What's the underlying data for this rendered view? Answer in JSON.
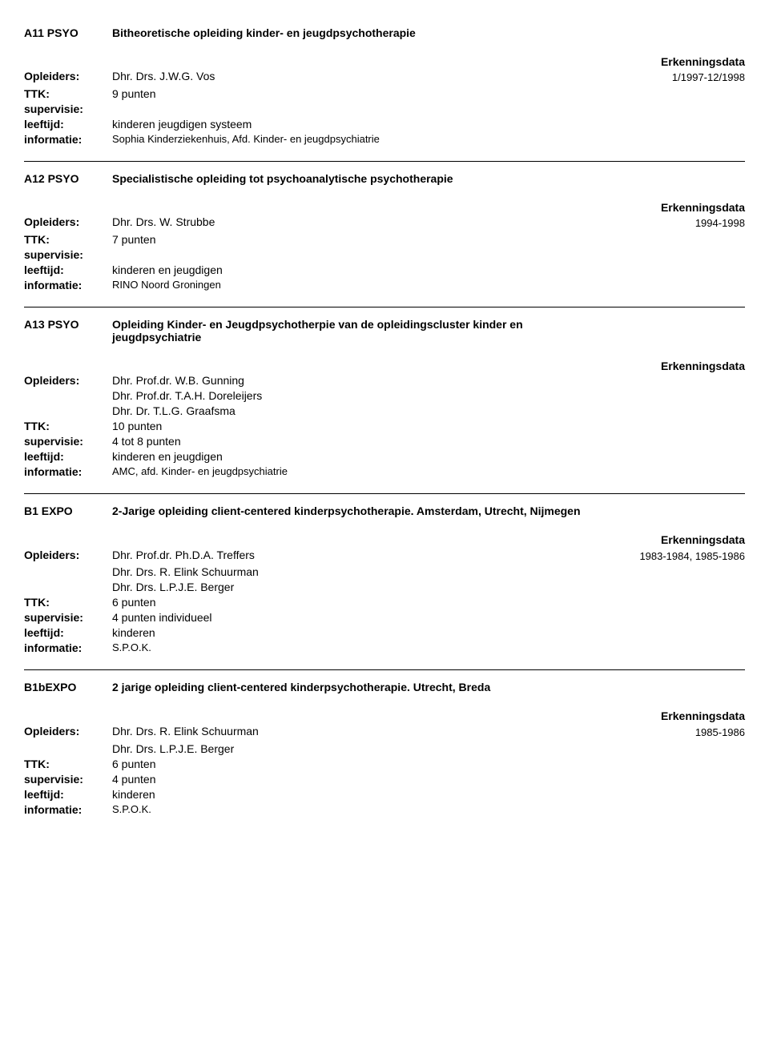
{
  "labels": {
    "opleiders": "Opleiders:",
    "ttk": "TTK:",
    "supervisie": "supervisie:",
    "leeftijd": "leeftijd:",
    "informatie": "informatie:"
  },
  "erk_header": "Erkenningsdata",
  "entries": [
    {
      "code": "A11 PSYO",
      "title": "Bitheoretische opleiding kinder- en jeugdpsychotherapie",
      "trainers": [
        "Dhr.  Drs.  J.W.G.   Vos"
      ],
      "erk_date": "1/1997-12/1998",
      "ttk": "9 punten",
      "supervisie": "",
      "leeftijd": "kinderen jeugdigen systeem",
      "informatie": "Sophia Kinderziekenhuis, Afd. Kinder- en jeugdpsychiatrie"
    },
    {
      "code": "A12 PSYO",
      "title": "Specialistische opleiding tot psychoanalytische psychotherapie",
      "trainers": [
        "Dhr.  Drs.  W.   Strubbe"
      ],
      "erk_date": "1994-1998",
      "ttk": "7 punten",
      "supervisie": "",
      "leeftijd": "kinderen en jeugdigen",
      "informatie": "RINO Noord Groningen"
    },
    {
      "code": "A13 PSYO",
      "title": "Opleiding Kinder- en Jeugdpsychotherpie van de opleidingscluster kinder en jeugdpsychiatrie",
      "trainers": [
        "Dhr.  Prof.dr.  W.B.   Gunning",
        "Dhr.  Prof.dr.  T.A.H.   Doreleijers",
        "Dhr.  Dr.  T.L.G.   Graafsma"
      ],
      "erk_date": "",
      "ttk": "10 punten",
      "supervisie": "4 tot 8 punten",
      "leeftijd": "kinderen en jeugdigen",
      "informatie": "AMC, afd. Kinder- en jeugdpsychiatrie"
    },
    {
      "code": "B1 EXPO",
      "title": "2-Jarige opleiding client-centered kinderpsychotherapie. Amsterdam, Utrecht, Nijmegen",
      "trainers": [
        "Dhr.  Prof.dr.  Ph.D.A.   Treffers",
        "Dhr.  Drs.  R.   Elink Schuurman",
        "Dhr.  Drs.  L.P.J.E.   Berger"
      ],
      "erk_date": "1983-1984, 1985-1986",
      "ttk": "6 punten",
      "supervisie": "4 punten individueel",
      "leeftijd": "kinderen",
      "informatie": "S.P.O.K."
    },
    {
      "code": "B1bEXPO",
      "title": "2 jarige opleiding client-centered kinderpsychotherapie. Utrecht, Breda",
      "trainers": [
        "Dhr.  Drs.  R.   Elink Schuurman",
        "Dhr.  Drs.  L.P.J.E.   Berger"
      ],
      "erk_date": "1985-1986",
      "ttk": "6 punten",
      "supervisie": "4 punten",
      "leeftijd": "kinderen",
      "informatie": "S.P.O.K."
    }
  ]
}
